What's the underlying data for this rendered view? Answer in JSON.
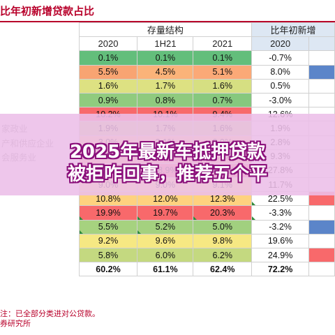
{
  "title": "比年初新增贷款占比",
  "header": {
    "group_stock": "存量结构",
    "group_new": "比年初新增",
    "years_stock": [
      "2020",
      "1H21",
      "2021"
    ],
    "year_new": "2020"
  },
  "row_labels": [
    "",
    "",
    "",
    "",
    "",
    "家政业",
    "产和供应企业",
    "会服务业",
    "",
    "",
    "",
    "",
    "",
    "",
    "",
    "",
    ""
  ],
  "rows": [
    {
      "s1": "0.1%",
      "s2": "0.1%",
      "s3": "0.1%",
      "n": "-0.7%"
    },
    {
      "s1": "5.5%",
      "s2": "4.5%",
      "s3": "5.1%",
      "n": "8.0%"
    },
    {
      "s1": "1.6%",
      "s2": "1.7%",
      "s3": "1.6%",
      "n": "0.5%"
    },
    {
      "s1": "0.9%",
      "s2": "0.8%",
      "s3": "0.7%",
      "n": "-3.0%"
    },
    {
      "s1": "10.2%",
      "s2": "10.1%",
      "s3": "9.4%",
      "n": "12.6%"
    },
    {
      "s1": "1.9%",
      "s2": "1.7%",
      "s3": "1.6%",
      "n": "1.9%"
    },
    {
      "s1": "3.0%",
      "s2": "3.1%",
      "s3": "3.0%",
      "n": "2.8%"
    },
    {
      "s1": "7.1%",
      "s2": "7.3%",
      "s3": "7.4%",
      "n": "9.3%"
    },
    {
      "s1": "39.8%",
      "s2": "38.9%",
      "s3": "37.6%",
      "n": "27.8%"
    },
    {
      "s1": "9.0%",
      "s2": "9.0%",
      "s3": "9.1%",
      "n": "11.7%"
    },
    {
      "s1": "10.8%",
      "s2": "12.0%",
      "s3": "12.3%",
      "n": "22.5%"
    },
    {
      "s1": "19.9%",
      "s2": "19.7%",
      "s3": "20.3%",
      "n": "-3.3%"
    },
    {
      "s1": "5.5%",
      "s2": "5.2%",
      "s3": "5.0%",
      "n": "-3.2%"
    },
    {
      "s1": "9.2%",
      "s2": "9.6%",
      "s3": "9.8%",
      "n": "19.6%"
    },
    {
      "s1": "5.8%",
      "s2": "6.0%",
      "s3": "6.2%",
      "n": "24.9%"
    },
    {
      "s1": "60.2%",
      "s2": "61.1%",
      "s3": "62.4%",
      "n": "72.2%"
    }
  ],
  "cell_colors": {
    "s1": [
      "#63be7b",
      "#f8a472",
      "#dde182",
      "#90cb7e",
      "#f8696b",
      "#c9db80",
      "#ffd081",
      "#fba977",
      "#f8696b",
      "#ffe984",
      "#fed27f",
      "#f8696b",
      "#a6d27f",
      "#f6e883",
      "#c4d980",
      "#ffffff"
    ],
    "s2": [
      "#63be7b",
      "#fbb379",
      "#dde182",
      "#8fca7e",
      "#f8696b",
      "#c9db80",
      "#ffd081",
      "#fba977",
      "#f8696b",
      "#ffe984",
      "#fed27f",
      "#f8696b",
      "#a4d17f",
      "#f6e883",
      "#c4d980",
      "#ffffff"
    ],
    "s3": [
      "#63be7b",
      "#fba977",
      "#d6df82",
      "#86c87e",
      "#f8696b",
      "#c9db80",
      "#ffd081",
      "#fba977",
      "#f8696b",
      "#ffe984",
      "#fed27f",
      "#f8696b",
      "#a1d07f",
      "#f6e883",
      "#c4d980",
      "#ffffff"
    ],
    "n": [
      "#ffffff",
      "#ffffff",
      "#ffffff",
      "#ffffff",
      "#ffffff",
      "#ffffff",
      "#ffffff",
      "#ffffff",
      "#ffffff",
      "#ffffff",
      "#ffffff",
      "#ffffff",
      "#ffffff",
      "#ffffff",
      "#ffffff",
      "#ffffff"
    ],
    "extra": [
      "#ffffff",
      "#5b85c9",
      "#ffffff",
      "#ffffff",
      "#ffffff",
      "#ffffff",
      "#ffffff",
      "#ffffff",
      "#ffffff",
      "#ffffff",
      "#f8696b",
      "#ffffff",
      "#5b85c9",
      "#ffffff",
      "#f8696b",
      "#ffffff"
    ]
  },
  "footnote": {
    "line1": "注：已全部分类进对公贷款。",
    "line2": "券研究所"
  },
  "overlay": {
    "line1": "2025年最新车抵押贷款",
    "line2": "被拒咋回事，推荐五个平"
  }
}
